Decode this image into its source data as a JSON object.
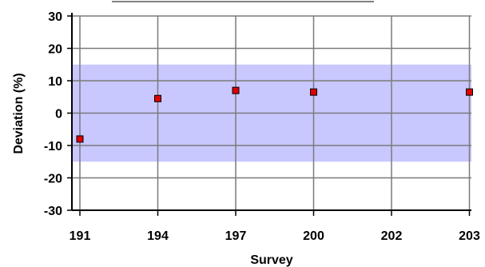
{
  "chart_data": {
    "type": "scatter",
    "title": "",
    "xlabel": "Survey",
    "ylabel": "Deviation (%)",
    "categories": [
      "191",
      "194",
      "197",
      "200",
      "202",
      "203"
    ],
    "y_ticks": [
      "30",
      "20",
      "10",
      "0",
      "-10",
      "-20",
      "-30"
    ],
    "y_tick_values": [
      30,
      20,
      10,
      0,
      -10,
      -20,
      -30
    ],
    "ylim": [
      -30,
      30
    ],
    "grid": true,
    "tolerance_band": {
      "low": -15,
      "high": 15,
      "color": "#c8c8ff"
    },
    "series": [
      {
        "marker": "square",
        "color": "#e00000",
        "points": [
          {
            "x": "191",
            "y": -8
          },
          {
            "x": "194",
            "y": 4.5
          },
          {
            "x": "197",
            "y": 7
          },
          {
            "x": "200",
            "y": 6.5
          },
          {
            "x": "203",
            "y": 6.5
          }
        ]
      }
    ]
  }
}
